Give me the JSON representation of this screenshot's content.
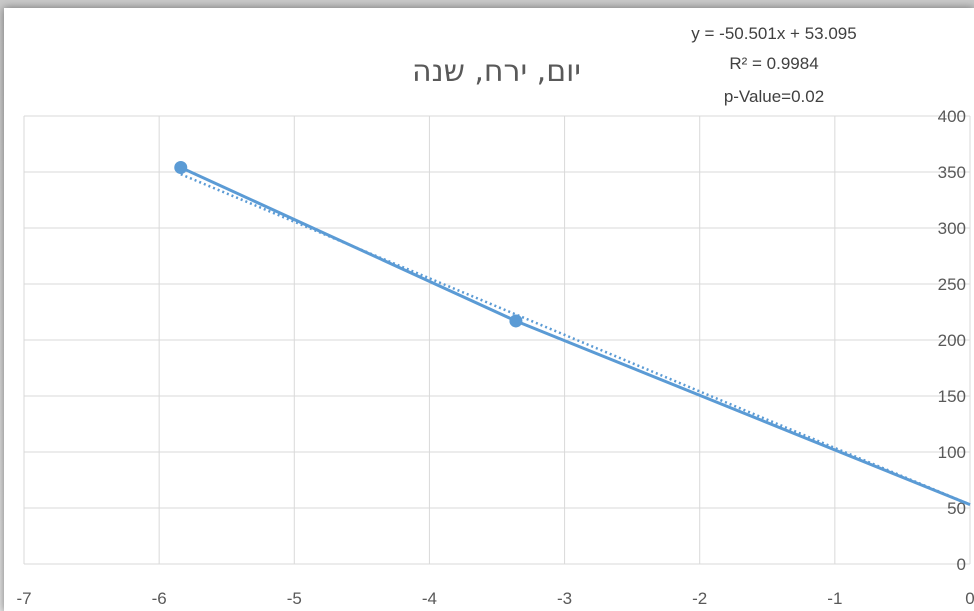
{
  "chart_data": {
    "type": "scatter",
    "title": "יום, ירח, שנה",
    "xlabel": "",
    "ylabel": "",
    "xlim": [
      -7,
      0
    ],
    "ylim": [
      0,
      400
    ],
    "x_ticks": [
      "-7",
      "-6",
      "-5",
      "-4",
      "-3",
      "-2",
      "-1",
      "0"
    ],
    "y_ticks": [
      "0",
      "50",
      "100",
      "150",
      "200",
      "250",
      "300",
      "350",
      "400"
    ],
    "grid": true,
    "y_axis_position": "right",
    "series": [
      {
        "points": [
          {
            "x": -5.84,
            "y": 354
          },
          {
            "x": -3.36,
            "y": 217
          },
          {
            "x": 0.0,
            "y": 53
          }
        ],
        "color": "#5b9bd5",
        "line": "solid"
      }
    ],
    "trendline": {
      "type": "linear",
      "slope": -50.501,
      "intercept": 53.095,
      "style": "dotted",
      "color": "#5b9bd5",
      "equation_label": "y = -50.501x + 53.095",
      "r2_label": "R² = 0.9984",
      "p_value_label": "p-Value=0.02"
    }
  }
}
